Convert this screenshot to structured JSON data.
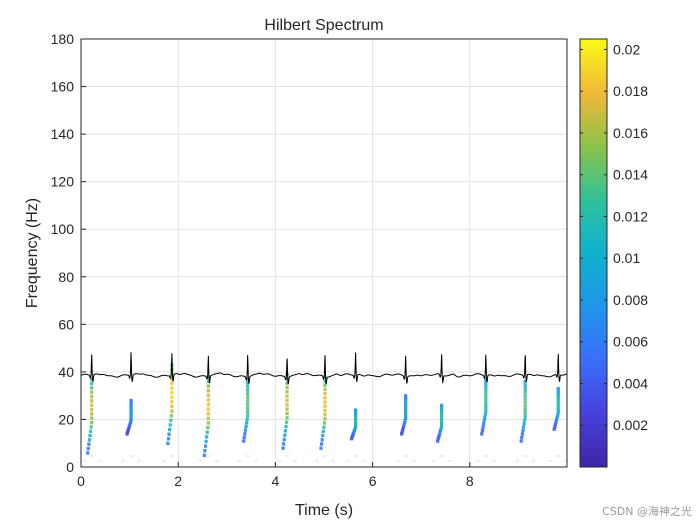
{
  "chart_data": {
    "type": "heatmap",
    "title": "Hilbert Spectrum",
    "xlabel": "Time (s)",
    "ylabel": "Frequency (Hz)",
    "xlim": [
      0,
      10
    ],
    "ylim": [
      0,
      180
    ],
    "grid": true,
    "x_ticks": [
      "0",
      "2",
      "4",
      "6",
      "8"
    ],
    "y_ticks": [
      "0",
      "20",
      "40",
      "60",
      "80",
      "100",
      "120",
      "140",
      "160",
      "180"
    ],
    "colorbar": {
      "colormap": "parula",
      "range": [
        0,
        0.0205
      ],
      "ticks": [
        "0.002",
        "0.004",
        "0.006",
        "0.008",
        "0.01",
        "0.012",
        "0.014",
        "0.016",
        "0.018",
        "0.02"
      ]
    },
    "signal_overlay": {
      "name": "ECG signal",
      "color": "#000000",
      "baseline_hz": 38.5,
      "r_peak_times": [
        0.22,
        1.03,
        1.87,
        2.62,
        3.43,
        4.24,
        5.02,
        5.65,
        6.68,
        7.42,
        8.33,
        9.14,
        9.82
      ],
      "r_peak_heights_hz": [
        47.5,
        48.5,
        48,
        47.5,
        48,
        47.5,
        48,
        48,
        47.5,
        47.5,
        47.5,
        48,
        47.5
      ]
    },
    "spectrum_streaks": [
      {
        "t": 0.22,
        "f_top": 37,
        "f_bottom": 6,
        "peak": 0.017
      },
      {
        "t": 1.03,
        "f_top": 28,
        "f_bottom": 14,
        "peak": 0.008
      },
      {
        "t": 1.87,
        "f_top": 43,
        "f_bottom": 10,
        "peak": 0.019
      },
      {
        "t": 2.62,
        "f_top": 38,
        "f_bottom": 5,
        "peak": 0.018
      },
      {
        "t": 3.43,
        "f_top": 37,
        "f_bottom": 11,
        "peak": 0.014
      },
      {
        "t": 4.24,
        "f_top": 39,
        "f_bottom": 8,
        "peak": 0.017
      },
      {
        "t": 5.02,
        "f_top": 38,
        "f_bottom": 8,
        "peak": 0.018
      },
      {
        "t": 5.65,
        "f_top": 24,
        "f_bottom": 12,
        "peak": 0.012
      },
      {
        "t": 6.68,
        "f_top": 30,
        "f_bottom": 14,
        "peak": 0.009
      },
      {
        "t": 7.42,
        "f_top": 26,
        "f_bottom": 11,
        "peak": 0.012
      },
      {
        "t": 8.33,
        "f_top": 37,
        "f_bottom": 14,
        "peak": 0.013
      },
      {
        "t": 9.14,
        "f_top": 36,
        "f_bottom": 11,
        "peak": 0.014
      },
      {
        "t": 9.82,
        "f_top": 33,
        "f_bottom": 16,
        "peak": 0.012
      }
    ]
  },
  "watermark": "CSDN @海神之光"
}
